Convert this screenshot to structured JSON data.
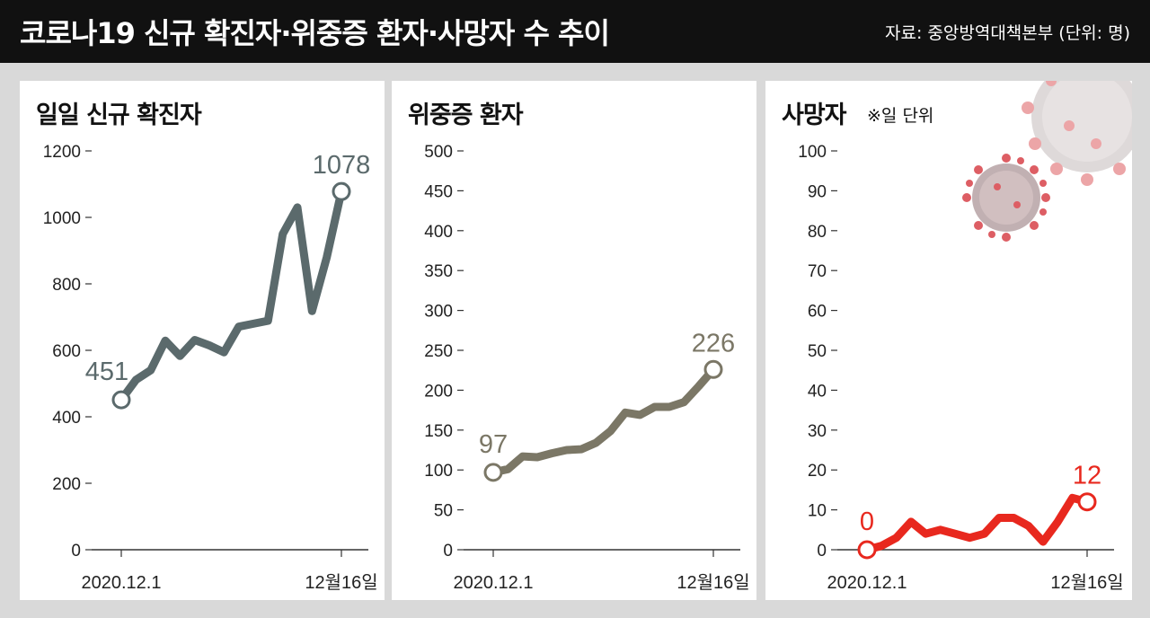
{
  "header": {
    "title": "코로나19 신규 확진자·위중증 환자·사망자 수 추이",
    "source": "자료: 중앙방역대책본부  (단위: 명)"
  },
  "chart_data": [
    {
      "type": "line",
      "title": "일일 신규 확진자",
      "note": "",
      "color": "#5b6a6c",
      "ylim": [
        0,
        1200
      ],
      "yticks": [
        0,
        200,
        400,
        600,
        800,
        1000,
        1200
      ],
      "x_labels": [
        "2020.12.1",
        "12월16일"
      ],
      "x": [
        "12.1",
        "12.2",
        "12.3",
        "12.4",
        "12.5",
        "12.6",
        "12.7",
        "12.8",
        "12.9",
        "12.10",
        "12.11",
        "12.12",
        "12.13",
        "12.14",
        "12.15",
        "12.16"
      ],
      "values": [
        451,
        511,
        540,
        629,
        583,
        631,
        615,
        594,
        671,
        680,
        689,
        950,
        1030,
        718,
        880,
        1078
      ],
      "start_label": "451",
      "end_label": "1078"
    },
    {
      "type": "line",
      "title": "위중증 환자",
      "note": "",
      "color": "#7b7766",
      "ylim": [
        0,
        500
      ],
      "yticks": [
        0,
        50,
        100,
        150,
        200,
        250,
        300,
        350,
        400,
        450,
        500
      ],
      "x_labels": [
        "2020.12.1",
        "12월16일"
      ],
      "x": [
        "12.1",
        "12.2",
        "12.3",
        "12.4",
        "12.5",
        "12.6",
        "12.7",
        "12.8",
        "12.9",
        "12.10",
        "12.11",
        "12.12",
        "12.13",
        "12.14",
        "12.15",
        "12.16"
      ],
      "values": [
        97,
        101,
        117,
        116,
        121,
        125,
        126,
        134,
        149,
        172,
        169,
        179,
        179,
        185,
        205,
        226
      ],
      "start_label": "97",
      "end_label": "226"
    },
    {
      "type": "line",
      "title": "사망자",
      "note": "※일 단위",
      "color": "#e8281e",
      "ylim": [
        0,
        100
      ],
      "yticks": [
        0,
        10,
        20,
        30,
        40,
        50,
        60,
        70,
        80,
        90,
        100
      ],
      "x_labels": [
        "2020.12.1",
        "12월16일"
      ],
      "x": [
        "12.1",
        "12.2",
        "12.3",
        "12.4",
        "12.5",
        "12.6",
        "12.7",
        "12.8",
        "12.9",
        "12.10",
        "12.11",
        "12.12",
        "12.13",
        "12.14",
        "12.15",
        "12.16"
      ],
      "values": [
        0,
        1,
        3,
        7,
        4,
        5,
        4,
        3,
        4,
        8,
        8,
        6,
        2,
        7,
        13,
        12
      ],
      "start_label": "0",
      "end_label": "12"
    }
  ]
}
